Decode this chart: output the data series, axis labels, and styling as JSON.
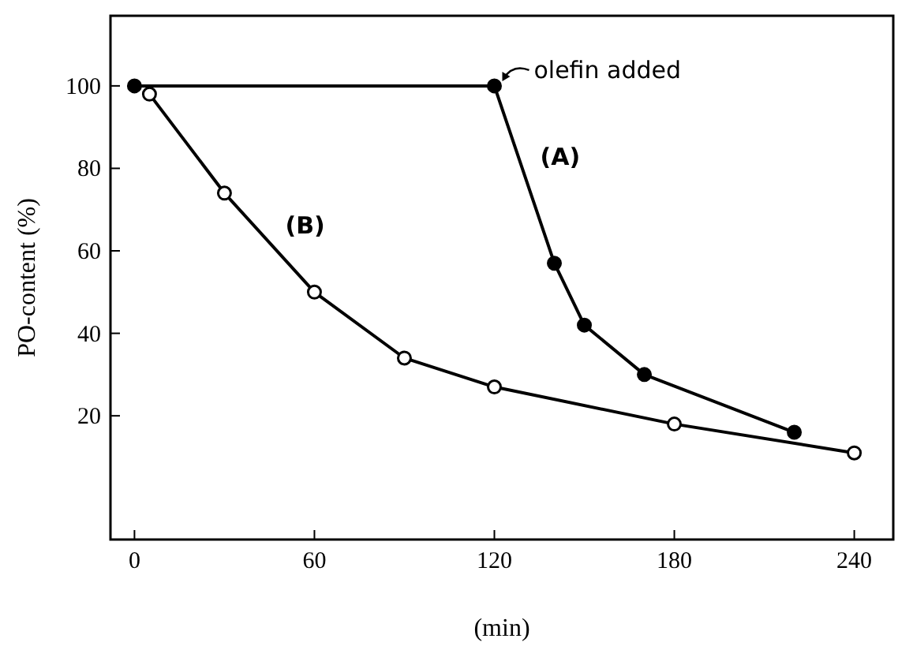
{
  "chart_data": {
    "type": "line",
    "xlabel": "(min)",
    "ylabel": "PO-content (%)",
    "xlim": [
      -8,
      253
    ],
    "ylim": [
      -10,
      117
    ],
    "xticks": [
      0,
      60,
      120,
      180,
      240
    ],
    "yticks": [
      20,
      40,
      60,
      80,
      100
    ],
    "grid": false,
    "legend": false,
    "series": [
      {
        "name": "(A)",
        "color": "#000000",
        "marker": "circle",
        "x": [
          0,
          120,
          140,
          150,
          170,
          220
        ],
        "values": [
          100,
          100,
          57,
          42,
          30,
          16
        ]
      },
      {
        "name": "(B)",
        "color": "#000000",
        "marker": "circle",
        "x": [
          5,
          30,
          60,
          90,
          120,
          180,
          240
        ],
        "values": [
          98,
          74,
          50,
          34,
          27,
          18,
          11
        ]
      }
    ],
    "annotations": [
      {
        "text": "olefin added",
        "x": 120,
        "y": 100
      }
    ]
  }
}
